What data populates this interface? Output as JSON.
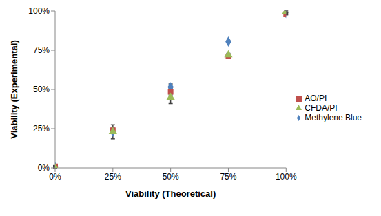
{
  "chart_data": {
    "type": "scatter",
    "x_label": "Viability (Theoretical)",
    "y_label": "Viability (Experimental)",
    "x": [
      0,
      25,
      50,
      75,
      100
    ],
    "series": [
      {
        "name": "Methylene Blue",
        "color": "#4f81bd",
        "marker": "diamond",
        "values": [
          0.5,
          23,
          51.5,
          80.5,
          98.5
        ],
        "errors": [
          0.5,
          1,
          2,
          0.5,
          0.5
        ]
      },
      {
        "name": "AO/PI",
        "color": "#c0504d",
        "marker": "square",
        "values": [
          1,
          24,
          48.5,
          71,
          98
        ],
        "errors": [
          0.5,
          2,
          2,
          1,
          0.5
        ]
      },
      {
        "name": "CFDA/PI",
        "color": "#9bbb59",
        "marker": "triangle",
        "values": [
          0,
          23,
          45,
          72,
          99.5
        ],
        "errors": [
          0.5,
          4.5,
          4,
          1,
          0.5
        ]
      }
    ],
    "xlim": [
      0,
      100
    ],
    "ylim": [
      0,
      100
    ],
    "xticks": [
      {
        "value": 0,
        "label": "0%"
      },
      {
        "value": 25,
        "label": "25%"
      },
      {
        "value": 50,
        "label": "50%"
      },
      {
        "value": 75,
        "label": "75%"
      },
      {
        "value": 100,
        "label": "100%"
      }
    ],
    "yticks": [
      {
        "value": 0,
        "label": "0%"
      },
      {
        "value": 25,
        "label": "25%"
      },
      {
        "value": 50,
        "label": "50%"
      },
      {
        "value": 75,
        "label": "75%"
      },
      {
        "value": 100,
        "label": "100%"
      }
    ],
    "grid": false,
    "legend": "right"
  }
}
